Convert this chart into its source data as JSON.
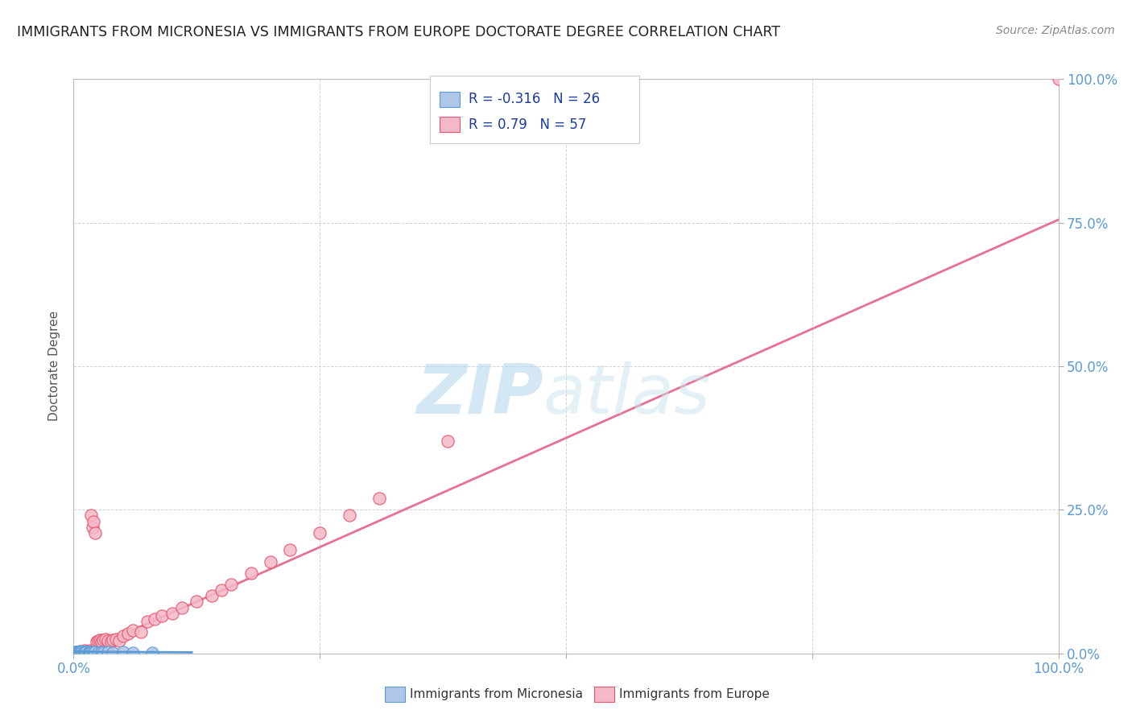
{
  "title": "IMMIGRANTS FROM MICRONESIA VS IMMIGRANTS FROM EUROPE DOCTORATE DEGREE CORRELATION CHART",
  "source": "Source: ZipAtlas.com",
  "ylabel": "Doctorate Degree",
  "xlim": [
    0,
    1.0
  ],
  "ylim": [
    0,
    1.0
  ],
  "xticks": [
    0.0,
    0.25,
    0.5,
    0.75,
    1.0
  ],
  "yticks": [
    0.0,
    0.25,
    0.5,
    0.75,
    1.0
  ],
  "xtick_labels": [
    "0.0%",
    "",
    "",
    "",
    "100.0%"
  ],
  "ytick_labels": [
    "0.0%",
    "25.0%",
    "50.0%",
    "75.0%",
    "100.0%"
  ],
  "micronesia_color": "#aec6e8",
  "europe_color": "#f4b8c8",
  "micronesia_edge_color": "#5b9bd5",
  "europe_edge_color": "#e8546a",
  "micronesia_line_color": "#5b9bd5",
  "europe_line_color": "#e87090",
  "micronesia_R": -0.316,
  "micronesia_N": 26,
  "europe_R": 0.79,
  "europe_N": 57,
  "legend_label_micronesia": "Immigrants from Micronesia",
  "legend_label_europe": "Immigrants from Europe",
  "background_color": "#ffffff",
  "grid_color": "#c8c8c8",
  "title_color": "#222222",
  "axis_label_color": "#5b9bd5",
  "watermark_color": "#cce8f4",
  "watermark_zip_color": "#cce8f4",
  "watermark_atlas_color": "#cce8f4",
  "europe_x_data": [
    0.002,
    0.003,
    0.004,
    0.004,
    0.005,
    0.006,
    0.006,
    0.007,
    0.008,
    0.008,
    0.009,
    0.01,
    0.01,
    0.011,
    0.012,
    0.013,
    0.014,
    0.015,
    0.016,
    0.017,
    0.018,
    0.018,
    0.019,
    0.02,
    0.022,
    0.023,
    0.025,
    0.027,
    0.028,
    0.03,
    0.032,
    0.035,
    0.038,
    0.04,
    0.043,
    0.046,
    0.05,
    0.055,
    0.06,
    0.068,
    0.075,
    0.082,
    0.09,
    0.1,
    0.11,
    0.125,
    0.14,
    0.15,
    0.16,
    0.18,
    0.2,
    0.22,
    0.25,
    0.28,
    0.31,
    0.38,
    1.0
  ],
  "europe_y_data": [
    0.002,
    0.001,
    0.003,
    0.002,
    0.001,
    0.003,
    0.004,
    0.002,
    0.003,
    0.001,
    0.002,
    0.004,
    0.001,
    0.005,
    0.003,
    0.002,
    0.004,
    0.003,
    0.002,
    0.005,
    0.003,
    0.24,
    0.22,
    0.23,
    0.21,
    0.02,
    0.022,
    0.023,
    0.021,
    0.024,
    0.025,
    0.022,
    0.02,
    0.023,
    0.025,
    0.022,
    0.03,
    0.035,
    0.04,
    0.038,
    0.055,
    0.06,
    0.065,
    0.07,
    0.08,
    0.09,
    0.1,
    0.11,
    0.12,
    0.14,
    0.16,
    0.18,
    0.21,
    0.24,
    0.27,
    0.37,
    1.0
  ],
  "mic_x_data": [
    0.002,
    0.003,
    0.004,
    0.005,
    0.006,
    0.007,
    0.008,
    0.009,
    0.01,
    0.011,
    0.012,
    0.013,
    0.015,
    0.016,
    0.017,
    0.018,
    0.02,
    0.022,
    0.025,
    0.028,
    0.03,
    0.035,
    0.04,
    0.05,
    0.06,
    0.08
  ],
  "mic_y_data": [
    0.003,
    0.002,
    0.001,
    0.002,
    0.003,
    0.001,
    0.004,
    0.002,
    0.003,
    0.001,
    0.002,
    0.003,
    0.001,
    0.002,
    0.003,
    0.001,
    0.003,
    0.002,
    0.001,
    0.002,
    0.001,
    0.002,
    0.001,
    0.002,
    0.001,
    0.001
  ]
}
